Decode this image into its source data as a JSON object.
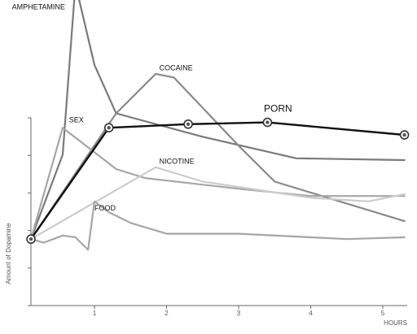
{
  "chart_data": {
    "type": "line",
    "title": "",
    "xlabel": "HOURS",
    "ylabel": "Amount of Dopamine",
    "xlim": [
      0,
      5.3
    ],
    "ylim": [
      0,
      100
    ],
    "x_ticks": [
      "1",
      "2",
      "3",
      "4",
      "5"
    ],
    "grid": false,
    "legend": "none",
    "series": [
      {
        "name": "AMPHETAMINE",
        "color": "#7a7a7a",
        "x": [
          0,
          0.5,
          0.7,
          1.0,
          1.3,
          2.5,
          3.8,
          5.3
        ],
        "y": [
          18,
          65,
          160,
          115,
          88,
          75,
          63,
          62
        ]
      },
      {
        "name": "COCAINE",
        "color": "#8a8a8a",
        "x": [
          0,
          1.3,
          1.85,
          2.1,
          3.0,
          3.5,
          5.3
        ],
        "y": [
          18,
          88,
          110,
          108,
          70,
          50,
          28
        ]
      },
      {
        "name": "SEX",
        "color": "#a6a6a6",
        "x": [
          0,
          0.5,
          1.3,
          1.7,
          3.0,
          4.0,
          5.3
        ],
        "y": [
          18,
          80,
          57,
          52,
          46,
          42,
          42
        ]
      },
      {
        "name": "NICOTINE",
        "color": "#cccccc",
        "x": [
          0,
          1.85,
          2.5,
          4.0,
          4.8,
          5.3
        ],
        "y": [
          18,
          58,
          50,
          41,
          39,
          43
        ]
      },
      {
        "name": "FOOD",
        "color": "#a6a6a6",
        "x": [
          0,
          0.2,
          0.5,
          0.7,
          0.9,
          1.0,
          1.2,
          1.5,
          2.0,
          3.0,
          4.0,
          4.5,
          5.3
        ],
        "y": [
          18,
          16,
          20,
          19,
          12,
          39,
          33,
          27,
          21,
          21,
          19,
          18,
          19
        ]
      },
      {
        "name": "PORN",
        "color": "#111111",
        "x": [
          0,
          1.2,
          2.3,
          3.4,
          5.3
        ],
        "y": [
          18,
          80,
          82,
          83,
          76
        ],
        "markers": [
          0,
          1,
          2,
          3,
          4
        ]
      }
    ],
    "annotations": [
      {
        "text": "AMPHETAMINE",
        "series": "AMPHETAMINE",
        "x": -0.3,
        "y": 146
      },
      {
        "text": "COCAINE",
        "series": "COCAINE",
        "x": 1.9,
        "y": 112
      },
      {
        "text": "SEX",
        "series": "SEX",
        "x": 0.6,
        "y": 83
      },
      {
        "text": "NICOTINE",
        "series": "NICOTINE",
        "x": 1.9,
        "y": 60
      },
      {
        "text": "FOOD",
        "series": "FOOD",
        "x": 1.0,
        "y": 34
      },
      {
        "text": "PORN",
        "series": "PORN",
        "x": 3.35,
        "y": 89
      }
    ]
  }
}
